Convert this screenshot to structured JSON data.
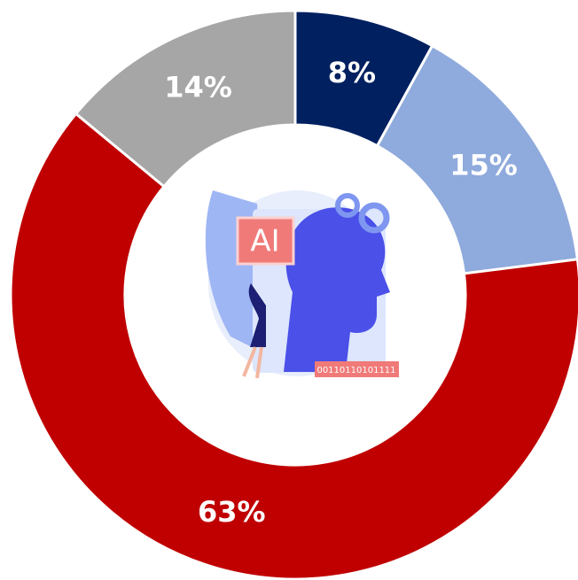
{
  "chart_data": {
    "type": "donut",
    "values": [
      8,
      15,
      63,
      14
    ],
    "value_labels": [
      "8%",
      "15%",
      "63%",
      "14%"
    ],
    "colors": [
      "#002060",
      "#8faadc",
      "#c00000",
      "#a6a6a6"
    ],
    "annotations": [
      "AI",
      "00110110101111"
    ]
  }
}
